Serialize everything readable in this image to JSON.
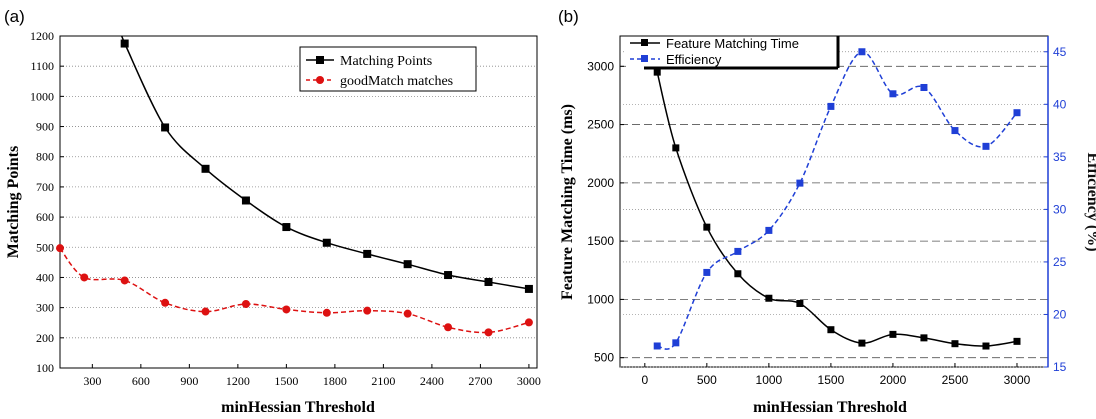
{
  "panels": [
    {
      "label": "(a)",
      "chart_data": {
        "type": "line",
        "xlabel": "minHessian Threshold",
        "ylabel": "Matching Points",
        "xlim": [
          100,
          3050
        ],
        "ylim": [
          100,
          1200
        ],
        "xticks": [
          300,
          600,
          900,
          1200,
          1500,
          1800,
          2100,
          2400,
          2700,
          3000
        ],
        "yticks": [
          100,
          200,
          300,
          400,
          500,
          600,
          700,
          800,
          900,
          1000,
          1100,
          1200
        ],
        "grid": "horizontal dotted",
        "legend_position": "top-right",
        "series": [
          {
            "name": "Matching Points",
            "color": "#000000",
            "style": "solid",
            "marker": "square",
            "x": [
              500,
              750,
              1000,
              1250,
              1500,
              1750,
              2000,
              2250,
              2500,
              2750,
              3000
            ],
            "y": [
              1175,
              897,
              760,
              655,
              567,
              515,
              478,
              444,
              408,
              385,
              362
            ]
          },
          {
            "name": "goodMatch matches",
            "color": "#dd1111",
            "style": "dashed",
            "marker": "circle",
            "x": [
              100,
              250,
              500,
              750,
              1000,
              1250,
              1500,
              1750,
              2000,
              2250,
              2500,
              2750,
              3000
            ],
            "y": [
              497,
              400,
              390,
              316,
              287,
              312,
              294,
              283,
              290,
              280,
              235,
              218,
              251
            ]
          }
        ]
      }
    },
    {
      "label": "(b)",
      "chart_data": {
        "type": "line",
        "xlabel": "minHessian Threshold",
        "ylabel": "Feature Matching Time (ms)",
        "y2label": "Efficiency (%)",
        "xlim": [
          -200,
          3250
        ],
        "ylim": [
          420,
          3260
        ],
        "y2lim": [
          15,
          46.5
        ],
        "xticks": [
          0,
          500,
          1000,
          1500,
          2000,
          2500,
          3000
        ],
        "yticks": [
          500,
          1000,
          1500,
          2000,
          2500,
          3000
        ],
        "y2ticks": [
          15,
          20,
          25,
          30,
          35,
          40,
          45
        ],
        "grid": "horizontal dashed",
        "legend_position": "top-left",
        "series": [
          {
            "name": "Feature Matching Time",
            "axis": "left",
            "color": "#000000",
            "style": "solid",
            "marker": "square",
            "x": [
              100,
              250,
              500,
              750,
              1000,
              1250,
              1500,
              1750,
              2000,
              2250,
              2500,
              2750,
              3000
            ],
            "y": [
              2950,
              2300,
              1620,
              1220,
              1010,
              965,
              740,
              625,
              700,
              670,
              620,
              600,
              640
            ]
          },
          {
            "name": "Efficiency",
            "axis": "right",
            "color": "#1f3fd6",
            "style": "dashed",
            "marker": "square",
            "x": [
              100,
              250,
              500,
              750,
              1000,
              1250,
              1500,
              1750,
              2000,
              2250,
              2500,
              2750,
              3000
            ],
            "y": [
              17.0,
              17.3,
              24.0,
              26.0,
              28.0,
              32.5,
              39.8,
              45.0,
              41.0,
              41.6,
              37.5,
              36.0,
              39.2
            ]
          }
        ]
      }
    }
  ]
}
